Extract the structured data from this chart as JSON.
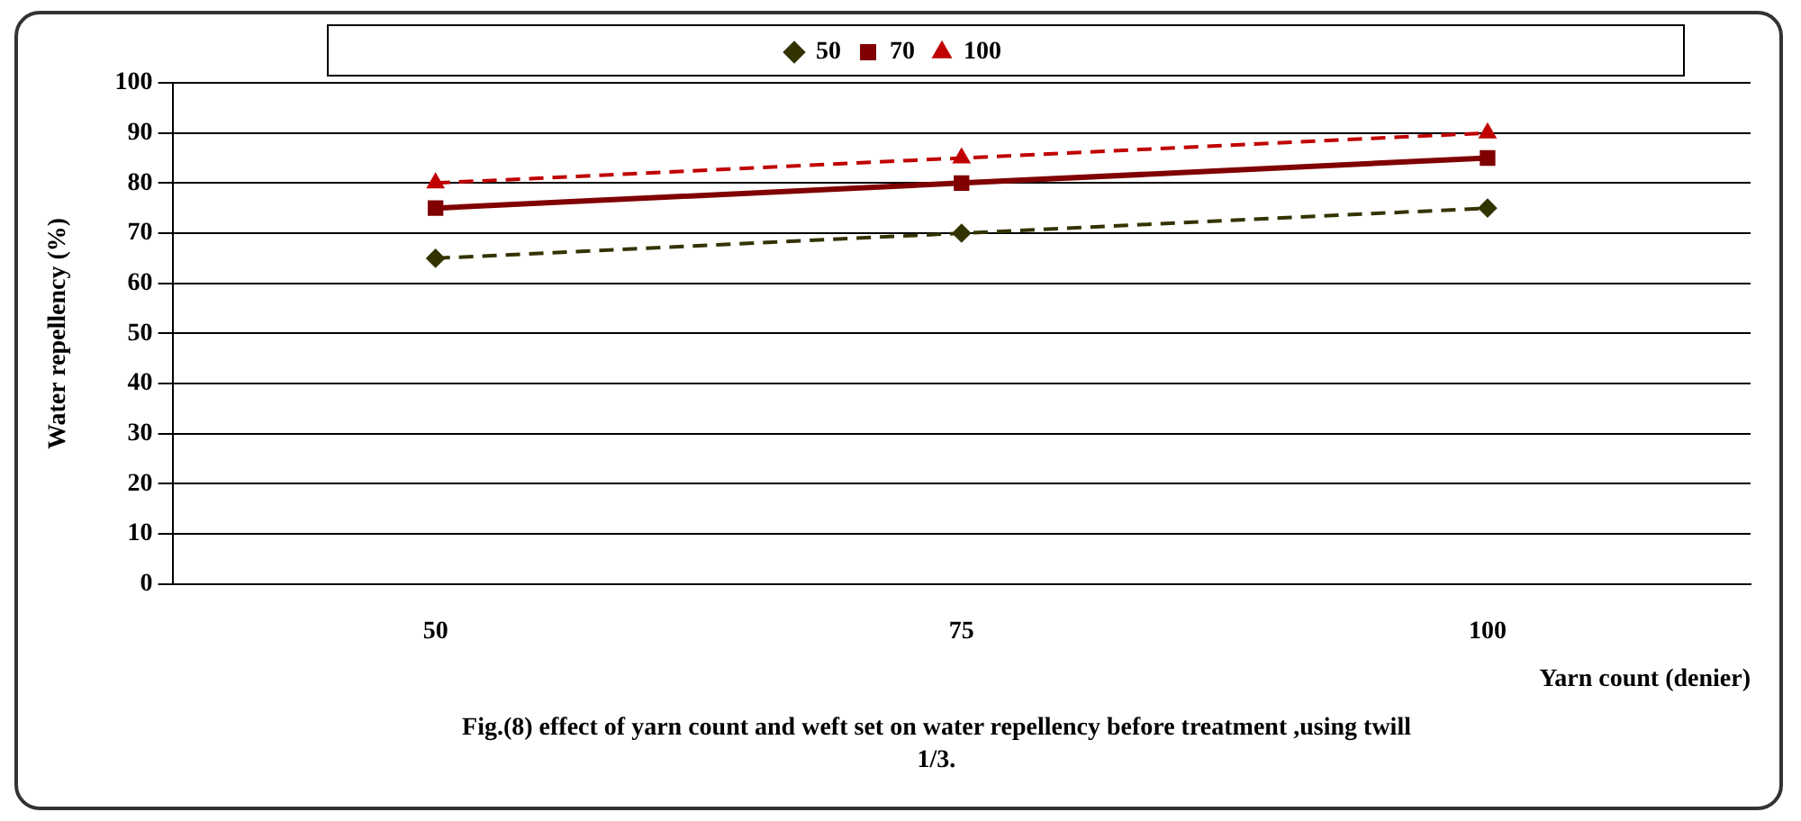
{
  "chart_data": {
    "type": "line",
    "xlabel": "Yarn count (denier)",
    "ylabel": "Water repellency (%)",
    "categories": [
      "50",
      "75",
      "100"
    ],
    "series": [
      {
        "name": "50",
        "color": "#333300",
        "values": [
          65,
          70,
          75
        ],
        "marker": "diamond",
        "line_style": "dashed"
      },
      {
        "name": "70",
        "color": "#800000",
        "values": [
          75,
          80,
          85
        ],
        "marker": "square",
        "line_style": "solid"
      },
      {
        "name": "100",
        "color": "#c00000",
        "values": [
          80,
          85,
          90
        ],
        "marker": "triangle",
        "line_style": "dashed"
      }
    ],
    "ylim": [
      0,
      100
    ],
    "yticks": [
      0,
      10,
      20,
      30,
      40,
      50,
      60,
      70,
      80,
      90,
      100
    ],
    "grid": "y",
    "legend": "top",
    "annotations": [
      "Fig.(8) effect of yarn count and weft set on  water repellency  before treatment ,using twill 1/3."
    ]
  }
}
